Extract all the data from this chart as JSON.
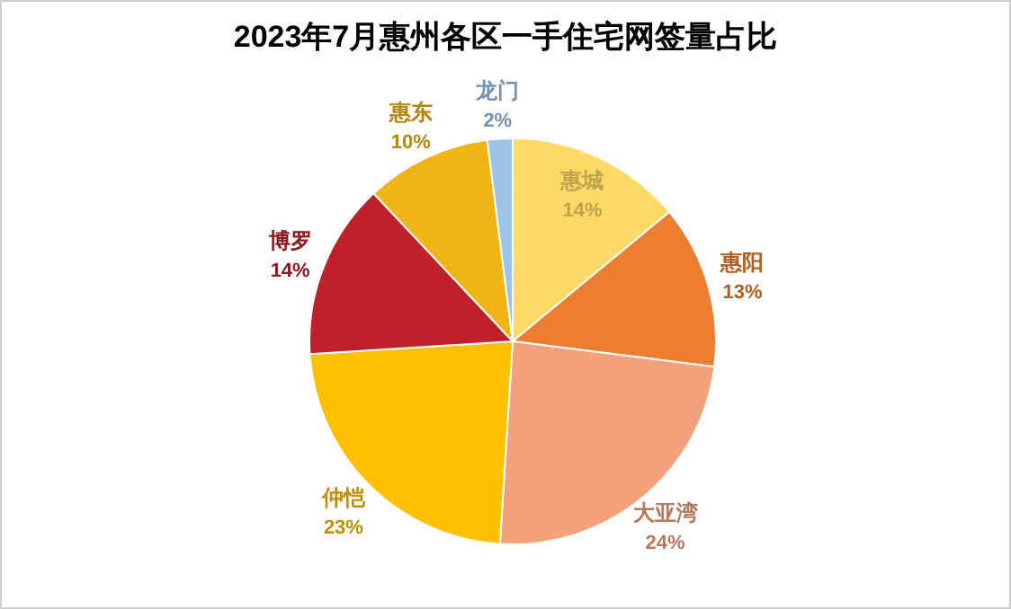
{
  "chart_data": {
    "type": "pie",
    "title": "2023年7月惠州各区一手住宅网签量占比",
    "categories": [
      "惠城",
      "惠阳",
      "大亚湾",
      "仲恺",
      "博罗",
      "惠东",
      "龙门"
    ],
    "values": [
      14,
      13,
      24,
      23,
      14,
      10,
      2
    ],
    "colors": [
      "#ffd966",
      "#ed7d31",
      "#f4a07a",
      "#ffc000",
      "#c0202a",
      "#f0b414",
      "#9dc3e6"
    ],
    "value_labels": [
      "14%",
      "13%",
      "24%",
      "23%",
      "14%",
      "10%",
      "2%"
    ]
  }
}
